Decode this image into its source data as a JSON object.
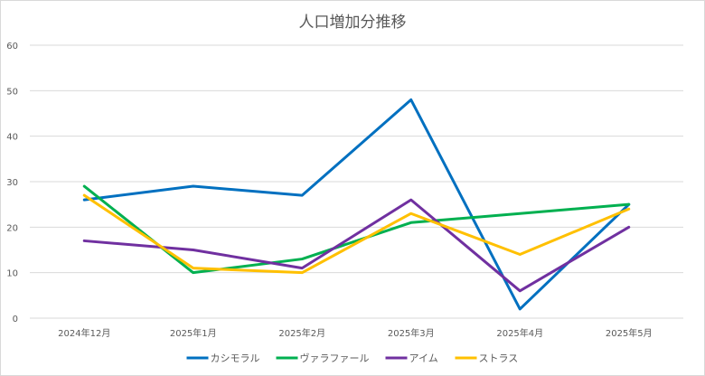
{
  "chart_data": {
    "type": "line",
    "title": "人口増加分推移",
    "xlabel": "",
    "ylabel": "",
    "categories": [
      "2024年12月",
      "2025年1月",
      "2025年2月",
      "2025年3月",
      "2025年4月",
      "2025年5月"
    ],
    "ylim": [
      0,
      60
    ],
    "yticks": [
      0,
      10,
      20,
      30,
      40,
      50,
      60
    ],
    "grid": true,
    "legend": "bottom",
    "series": [
      {
        "name": "カシモラル",
        "color": "#0070c0",
        "values": [
          26,
          29,
          27,
          48,
          2,
          25
        ]
      },
      {
        "name": "ヴァラファール",
        "color": "#00b050",
        "values": [
          29,
          10,
          13,
          21,
          23,
          25
        ]
      },
      {
        "name": "アイム",
        "color": "#7030a0",
        "values": [
          17,
          15,
          11,
          26,
          6,
          20
        ]
      },
      {
        "name": "ストラス",
        "color": "#ffc000",
        "values": [
          27,
          11,
          10,
          23,
          14,
          24
        ]
      }
    ]
  }
}
